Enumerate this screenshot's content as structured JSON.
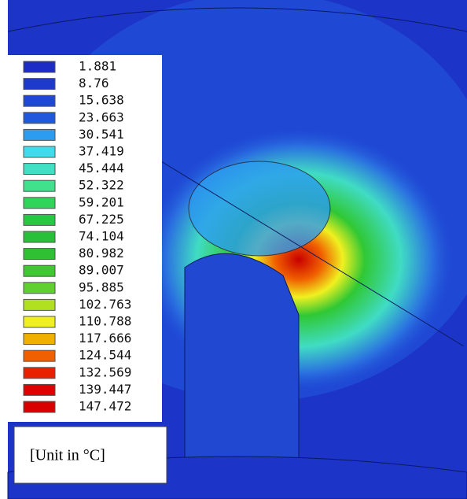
{
  "legend": {
    "entries": [
      {
        "label": "1.881",
        "color": "#1c2cc4"
      },
      {
        "label": "8.76",
        "color": "#1e3acc"
      },
      {
        "label": "15.638",
        "color": "#1f48d4"
      },
      {
        "label": "23.663",
        "color": "#2058dc"
      },
      {
        "label": "30.541",
        "color": "#2c9cf0"
      },
      {
        "label": "37.419",
        "color": "#40dcec"
      },
      {
        "label": "45.444",
        "color": "#40e0c4"
      },
      {
        "label": "52.322",
        "color": "#40e08c"
      },
      {
        "label": "59.201",
        "color": "#30d458"
      },
      {
        "label": "67.225",
        "color": "#28c844"
      },
      {
        "label": "74.104",
        "color": "#28c038"
      },
      {
        "label": "80.982",
        "color": "#30c034"
      },
      {
        "label": "89.007",
        "color": "#40c830"
      },
      {
        "label": "95.885",
        "color": "#60d030"
      },
      {
        "label": "102.763",
        "color": "#b0e020"
      },
      {
        "label": "110.788",
        "color": "#f0f020"
      },
      {
        "label": "117.666",
        "color": "#f0b000"
      },
      {
        "label": "124.544",
        "color": "#f06000"
      },
      {
        "label": "132.569",
        "color": "#e82000"
      },
      {
        "label": "139.447",
        "color": "#e00000"
      },
      {
        "label": "147.472",
        "color": "#d80000"
      }
    ]
  },
  "unit": "[Unit in °C]"
}
